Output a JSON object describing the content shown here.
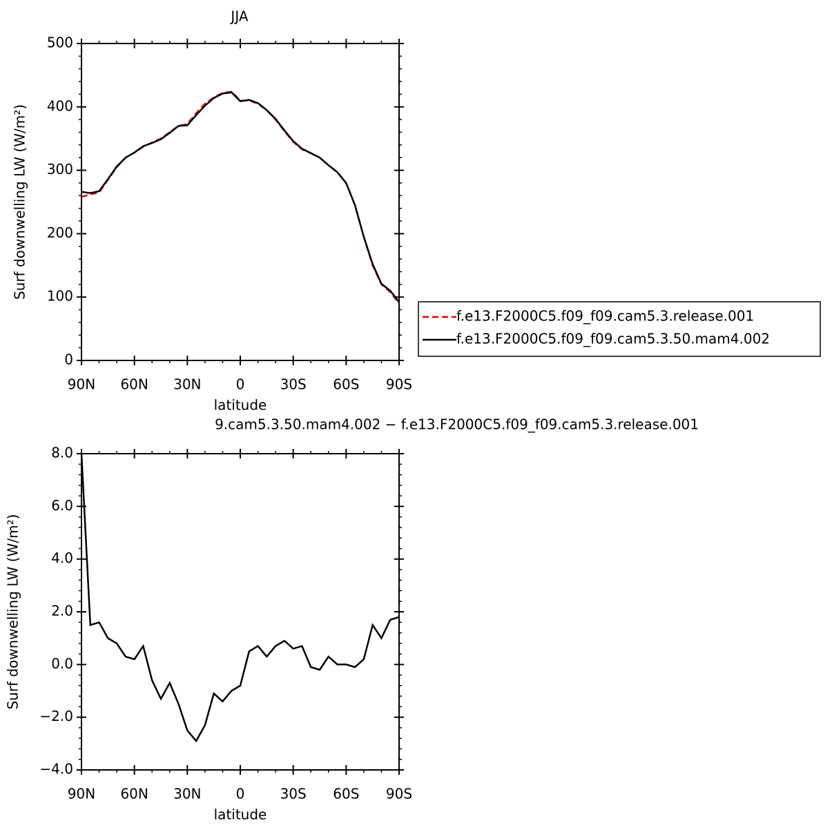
{
  "chart_data": [
    {
      "type": "line",
      "title": "JJA",
      "x_label": "latitude",
      "y_label": "Surf downwelling LW (W/m²)",
      "x": [
        90,
        85,
        80,
        75,
        70,
        65,
        60,
        55,
        50,
        45,
        40,
        35,
        30,
        25,
        20,
        15,
        10,
        5,
        0,
        -5,
        -10,
        -15,
        -20,
        -25,
        -30,
        -35,
        -40,
        -45,
        -50,
        -55,
        -60,
        -65,
        -70,
        -75,
        -80,
        -85,
        -90
      ],
      "xlim": [
        90,
        -90
      ],
      "xticks": [
        {
          "value": 90,
          "label": "90N"
        },
        {
          "value": 60,
          "label": "60N"
        },
        {
          "value": 30,
          "label": "30N"
        },
        0,
        {
          "value": -30,
          "label": "30S"
        },
        {
          "value": -60,
          "label": "60S"
        },
        {
          "value": -90,
          "label": "90S"
        }
      ],
      "ylim": [
        0,
        500
      ],
      "yticks": [
        0,
        100,
        200,
        300,
        400,
        500
      ],
      "legend": "right",
      "series": [
        {
          "name": "f.e13.F2000C5.f09_f09.cam5.3.release.001",
          "color": "#e00000",
          "linestyle": "dashed",
          "values": [
            258,
            262,
            265,
            285,
            305,
            320,
            328,
            337,
            344,
            350,
            360,
            370,
            373,
            390,
            405,
            415,
            422,
            424,
            410,
            410,
            405,
            395,
            380,
            362,
            345,
            333,
            327,
            320,
            308,
            297,
            280,
            245,
            195,
            150,
            120,
            108,
            90
          ]
        },
        {
          "name": "f.e13.F2000C5.f09_f09.cam5.3.50.mam4.002",
          "color": "#000000",
          "linestyle": "solid",
          "values": [
            266,
            264,
            267,
            286,
            306,
            320,
            328,
            338,
            343,
            349,
            359,
            370,
            371,
            387,
            402,
            414,
            421,
            423,
            409,
            411,
            406,
            395,
            381,
            363,
            346,
            334,
            327,
            320,
            308,
            297,
            280,
            245,
            195,
            152,
            121,
            110,
            92
          ]
        }
      ]
    },
    {
      "type": "line",
      "title": "9.cam5.3.50.mam4.002 − f.e13.F2000C5.f09_f09.cam5.3.release.001",
      "x_label": "latitude",
      "y_label": "Surf downwelling LW (W/m²)",
      "x": [
        90,
        85,
        80,
        75,
        70,
        65,
        60,
        55,
        50,
        45,
        40,
        35,
        30,
        25,
        20,
        15,
        10,
        5,
        0,
        -5,
        -10,
        -15,
        -20,
        -25,
        -30,
        -35,
        -40,
        -45,
        -50,
        -55,
        -60,
        -65,
        -70,
        -75,
        -80,
        -85,
        -90
      ],
      "xlim": [
        90,
        -90
      ],
      "xticks": [
        {
          "value": 90,
          "label": "90N"
        },
        {
          "value": 60,
          "label": "60N"
        },
        {
          "value": 30,
          "label": "30N"
        },
        0,
        {
          "value": -30,
          "label": "30S"
        },
        {
          "value": -60,
          "label": "60S"
        },
        {
          "value": -90,
          "label": "90S"
        }
      ],
      "ylim": [
        -4,
        8
      ],
      "yticks": [
        {
          "value": -4,
          "label": "−4.0"
        },
        {
          "value": -2,
          "label": "−2.0"
        },
        {
          "value": 0,
          "label": "0.0"
        },
        {
          "value": 2,
          "label": "2.0"
        },
        {
          "value": 4,
          "label": "4.0"
        },
        {
          "value": 6,
          "label": "6.0"
        },
        {
          "value": 8,
          "label": "8.0"
        }
      ],
      "series": [
        {
          "color": "#000000",
          "values": [
            8.0,
            1.5,
            1.6,
            1.0,
            0.8,
            0.3,
            0.2,
            0.7,
            -0.6,
            -1.3,
            -0.7,
            -1.5,
            -2.5,
            -2.9,
            -2.3,
            -1.1,
            -1.4,
            -1.0,
            -0.8,
            0.5,
            0.7,
            0.3,
            0.7,
            0.9,
            0.6,
            0.7,
            -0.1,
            -0.2,
            0.3,
            0.0,
            0.0,
            -0.1,
            0.2,
            1.5,
            1.0,
            1.7,
            1.8
          ]
        }
      ]
    }
  ]
}
